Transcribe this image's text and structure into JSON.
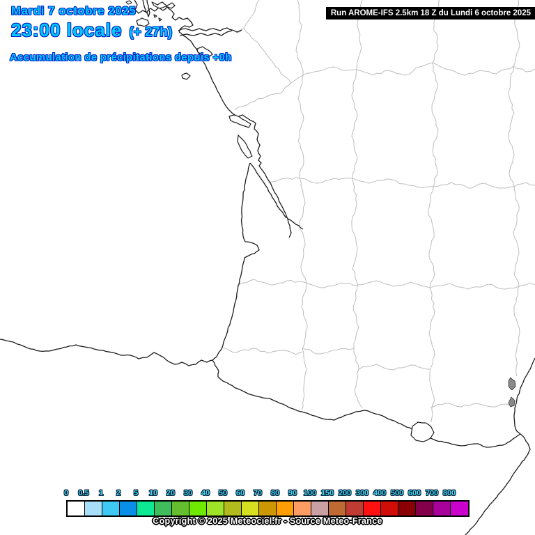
{
  "header": {
    "date": "Mardi 7 octobre 2025",
    "time": "23:00 locale",
    "offset": "(+ 27h)",
    "subtitle": "Accumulation de précipitations depuis +0h",
    "run": "Run AROME-IFS 2.5km 18 Z du Lundi 6 octobre 2025"
  },
  "legend": {
    "labels": [
      "0",
      "0.5",
      "1",
      "2",
      "5",
      "10",
      "20",
      "30",
      "40",
      "50",
      "60",
      "70",
      "80",
      "90",
      "100",
      "150",
      "200",
      "300",
      "400",
      "500",
      "600",
      "700",
      "800"
    ],
    "colors": [
      "#ffffff",
      "#a8dff8",
      "#3fc8f4",
      "#0a8fe8",
      "#0de894",
      "#3fbc5c",
      "#64be2d",
      "#6fe900",
      "#9fe329",
      "#b2bb1e",
      "#d6e020",
      "#cc9703",
      "#ff9d05",
      "#ff9c63",
      "#c9a1a4",
      "#c06a33",
      "#be3c34",
      "#ff1111",
      "#d00d06",
      "#8b0005",
      "#85004b",
      "#a8009b",
      "#cc00cc"
    ]
  },
  "footer": {
    "copyright": "Copyright © 2025 Meteociel.fr - Source Meteo-France"
  },
  "colors": {
    "title_fill": "#00cbff",
    "title_outline": "#0021c8",
    "legend_label_fill": "#45d9f0",
    "boundary_gray": "#bdbdbd",
    "coastline_black": "#1b1b1b",
    "run_box_bg": "#000000",
    "run_box_text": "#ffffff"
  }
}
